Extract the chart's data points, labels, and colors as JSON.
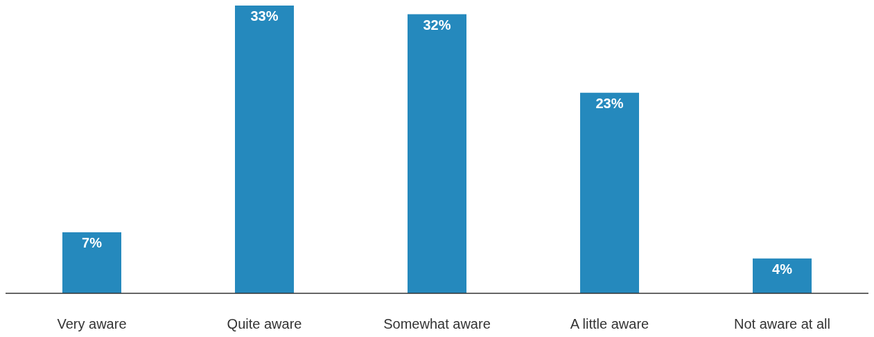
{
  "chart_data": {
    "type": "bar",
    "categories": [
      "Very aware",
      "Quite aware",
      "Somewhat aware",
      "A little aware",
      "Not aware at all"
    ],
    "values": [
      7,
      33,
      32,
      23,
      4
    ],
    "value_labels": [
      "7%",
      "33%",
      "32%",
      "23%",
      "4%"
    ],
    "color": "#2589bd"
  }
}
